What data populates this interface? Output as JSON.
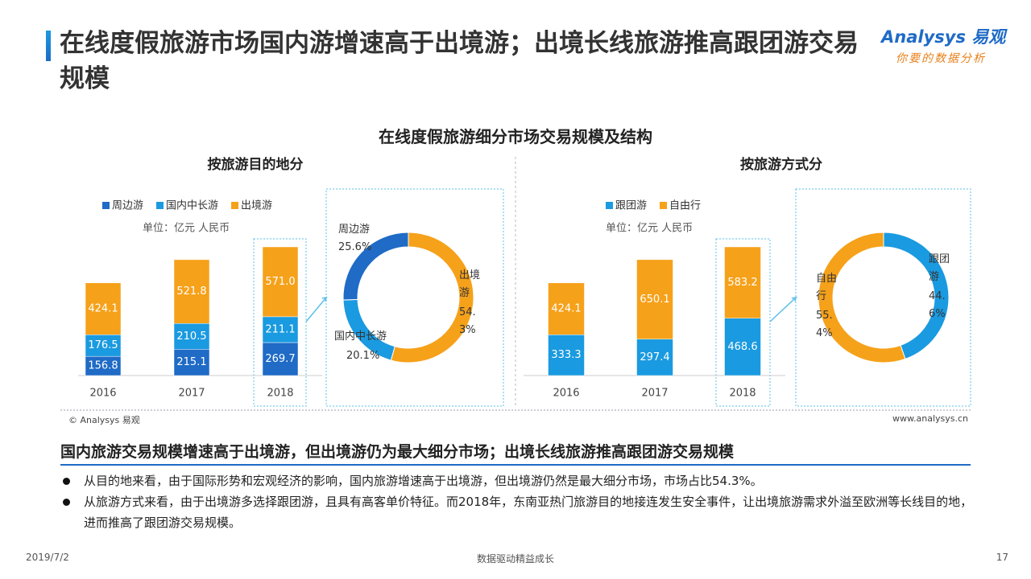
{
  "header": {
    "title": "在线度假旅游市场国内游增速高于出境游；出境长线旅游推高跟团游交易规模",
    "logo": "Analysys 易观",
    "logo_slogan": "你要的数据分析"
  },
  "section_title": "在线度假旅游细分市场交易规模及结构",
  "chart_data": [
    {
      "type": "bar",
      "stacked": true,
      "title": "按旅游目的地分",
      "unit": "单位：亿元 人民币",
      "categories": [
        "2016",
        "2017",
        "2018"
      ],
      "series": [
        {
          "name": "周边游",
          "color": "#1f6bc6",
          "values": [
            156.8,
            215.1,
            269.7
          ]
        },
        {
          "name": "国内中长游",
          "color": "#1a9ae0",
          "values": [
            176.5,
            210.5,
            211.1
          ]
        },
        {
          "name": "出境游",
          "color": "#f6a11a",
          "values": [
            424.1,
            521.8,
            571.0
          ],
          "value_labels": [
            "424.1",
            "521.8",
            "571.0"
          ]
        }
      ]
    },
    {
      "type": "pie",
      "donut": true,
      "categories": [
        "出境游",
        "国内中长游",
        "周边游"
      ],
      "values": [
        54.3,
        20.1,
        25.6
      ],
      "value_labels": [
        "54.3%",
        "20.1%",
        "25.6%"
      ],
      "colors": [
        "#f6a11a",
        "#1a9ae0",
        "#1f6bc6"
      ]
    },
    {
      "type": "bar",
      "stacked": true,
      "title": "按旅游方式分",
      "unit": "单位：亿元 人民币",
      "categories": [
        "2016",
        "2017",
        "2018"
      ],
      "series": [
        {
          "name": "跟团游",
          "color": "#1a9ae0",
          "values": [
            333.3,
            297.4,
            468.6
          ]
        },
        {
          "name": "自由行",
          "color": "#f6a11a",
          "values": [
            424.1,
            650.1,
            583.2
          ]
        }
      ]
    },
    {
      "type": "pie",
      "donut": true,
      "categories": [
        "跟团游",
        "自由行"
      ],
      "values": [
        44.6,
        55.4
      ],
      "value_labels": [
        "44.6%",
        "55.4%"
      ],
      "colors": [
        "#1a9ae0",
        "#f6a11a"
      ]
    }
  ],
  "source": "© Analysys 易观",
  "website": "www.analysys.cn",
  "summary": {
    "title": "国内旅游交易规模增速高于出境游，但出境游仍为最大细分市场；出境长线旅游推高跟团游交易规模",
    "bullets": [
      "从目的地来看，由于国际形势和宏观经济的影响，国内旅游增速高于出境游，但出境游仍然是最大细分市场，市场占比54.3%。",
      "从旅游方式来看，由于出境游多选择跟团游，且具有高客单价特征。而2018年，东南亚热门旅游目的地接连发生安全事件，让出境旅游需求外溢至欧洲等长线目的地，进而推高了跟团游交易规模。"
    ]
  },
  "footer": {
    "date": "2019/7/2",
    "slogan": "数据驱动精益成长",
    "page": "17"
  }
}
